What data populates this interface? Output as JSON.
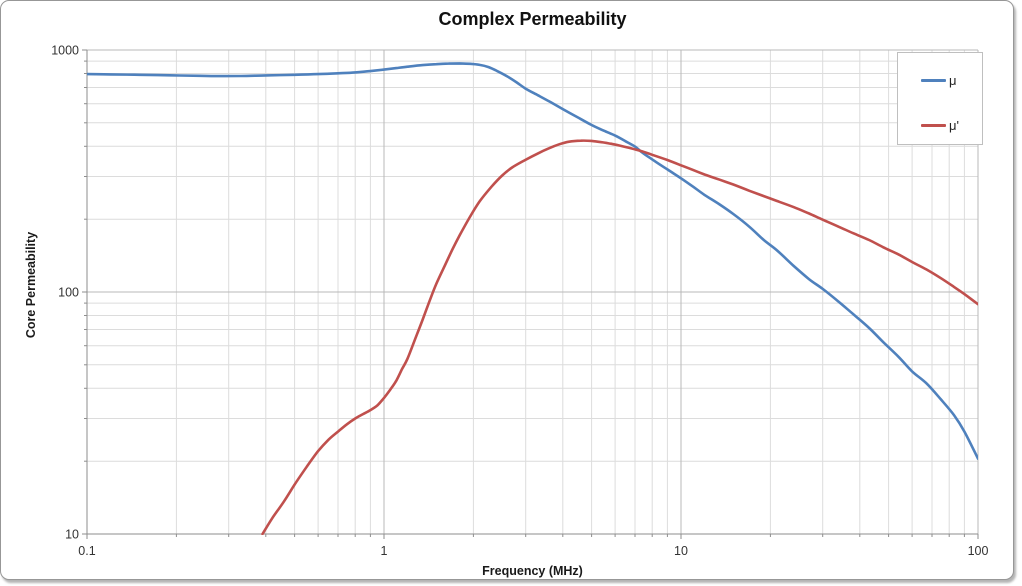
{
  "chart_data": {
    "type": "line",
    "title": "Complex Permeability",
    "xlabel": "Frequency (MHz)",
    "ylabel": "Core Permeability",
    "x_scale": "log",
    "y_scale": "log",
    "xlim": [
      0.1,
      100
    ],
    "ylim": [
      10,
      1000
    ],
    "x_ticks": [
      0.1,
      1,
      10,
      100
    ],
    "x_tick_labels": [
      "0.1",
      "1",
      "10",
      "100"
    ],
    "y_ticks": [
      10,
      100,
      1000
    ],
    "y_tick_labels": [
      "10",
      "100",
      "1000"
    ],
    "grid": "log major and minor gridlines on",
    "legend_position": "top-right inside plot",
    "series": [
      {
        "name": "μ",
        "color": "#4F81BD",
        "points": [
          [
            0.1,
            795
          ],
          [
            0.12,
            793
          ],
          [
            0.15,
            790
          ],
          [
            0.19,
            786
          ],
          [
            0.24,
            782
          ],
          [
            0.28,
            780
          ],
          [
            0.33,
            781
          ],
          [
            0.4,
            785
          ],
          [
            0.5,
            790
          ],
          [
            0.6,
            795
          ],
          [
            0.7,
            801
          ],
          [
            0.8,
            808
          ],
          [
            0.9,
            818
          ],
          [
            1.0,
            830
          ],
          [
            1.1,
            842
          ],
          [
            1.2,
            853
          ],
          [
            1.35,
            866
          ],
          [
            1.5,
            874
          ],
          [
            1.65,
            879
          ],
          [
            1.8,
            880
          ],
          [
            1.95,
            877
          ],
          [
            2.1,
            868
          ],
          [
            2.25,
            850
          ],
          [
            2.4,
            820
          ],
          [
            2.6,
            778
          ],
          [
            2.8,
            734
          ],
          [
            3.0,
            692
          ],
          [
            3.3,
            650
          ],
          [
            3.6,
            613
          ],
          [
            4.0,
            570
          ],
          [
            4.5,
            526
          ],
          [
            5.0,
            490
          ],
          [
            5.5,
            464
          ],
          [
            6.0,
            443
          ],
          [
            6.5,
            420
          ],
          [
            7.0,
            399
          ],
          [
            7.4,
            377
          ],
          [
            8.0,
            353
          ],
          [
            9.0,
            321
          ],
          [
            10,
            295
          ],
          [
            11,
            272
          ],
          [
            12,
            252
          ],
          [
            13.5,
            230
          ],
          [
            15,
            210
          ],
          [
            17,
            186
          ],
          [
            19,
            164
          ],
          [
            21,
            149
          ],
          [
            24,
            128
          ],
          [
            27,
            113
          ],
          [
            30,
            103
          ],
          [
            34,
            91
          ],
          [
            38,
            81
          ],
          [
            43,
            71
          ],
          [
            48,
            62
          ],
          [
            54,
            54
          ],
          [
            60,
            47
          ],
          [
            67,
            42
          ],
          [
            75,
            36
          ],
          [
            83,
            31
          ],
          [
            90,
            26.5
          ],
          [
            100,
            20.5
          ]
        ]
      },
      {
        "name": "μ'",
        "color": "#C0504D",
        "points": [
          [
            0.39,
            10
          ],
          [
            0.42,
            11.6
          ],
          [
            0.46,
            13.6
          ],
          [
            0.5,
            16
          ],
          [
            0.55,
            19
          ],
          [
            0.6,
            22
          ],
          [
            0.65,
            24.5
          ],
          [
            0.7,
            26.5
          ],
          [
            0.75,
            28.4
          ],
          [
            0.8,
            30
          ],
          [
            0.85,
            31.3
          ],
          [
            0.9,
            32.5
          ],
          [
            0.95,
            34
          ],
          [
            1.0,
            36.5
          ],
          [
            1.05,
            39.5
          ],
          [
            1.1,
            43
          ],
          [
            1.15,
            48
          ],
          [
            1.2,
            53
          ],
          [
            1.28,
            65
          ],
          [
            1.35,
            77
          ],
          [
            1.42,
            91
          ],
          [
            1.5,
            108
          ],
          [
            1.6,
            128
          ],
          [
            1.7,
            150
          ],
          [
            1.8,
            172
          ],
          [
            1.95,
            205
          ],
          [
            2.1,
            237
          ],
          [
            2.3,
            272
          ],
          [
            2.5,
            303
          ],
          [
            2.7,
            327
          ],
          [
            3.0,
            352
          ],
          [
            3.3,
            374
          ],
          [
            3.6,
            393
          ],
          [
            3.9,
            408
          ],
          [
            4.2,
            418
          ],
          [
            4.6,
            422
          ],
          [
            5.0,
            421
          ],
          [
            5.4,
            416
          ],
          [
            5.8,
            410
          ],
          [
            6.2,
            403
          ],
          [
            6.8,
            392
          ],
          [
            7.4,
            381
          ],
          [
            8.0,
            369
          ],
          [
            9.0,
            351
          ],
          [
            10,
            334
          ],
          [
            11,
            319
          ],
          [
            12,
            306
          ],
          [
            13.5,
            291
          ],
          [
            15,
            278
          ],
          [
            17,
            262
          ],
          [
            19,
            249
          ],
          [
            21,
            238
          ],
          [
            24,
            224
          ],
          [
            27,
            211
          ],
          [
            30,
            199
          ],
          [
            34,
            186
          ],
          [
            38,
            175
          ],
          [
            43,
            164
          ],
          [
            48,
            153
          ],
          [
            54,
            143
          ],
          [
            60,
            133
          ],
          [
            67,
            124
          ],
          [
            75,
            114
          ],
          [
            83,
            105
          ],
          [
            90,
            98
          ],
          [
            100,
            89
          ]
        ]
      }
    ],
    "style_colors": {
      "major_gridline": "#b9b9b9",
      "minor_gridline": "#dcdcdc",
      "axis_line": "#8e8e8e",
      "tick_label": "#333333",
      "plot_background": "#ffffff"
    }
  }
}
